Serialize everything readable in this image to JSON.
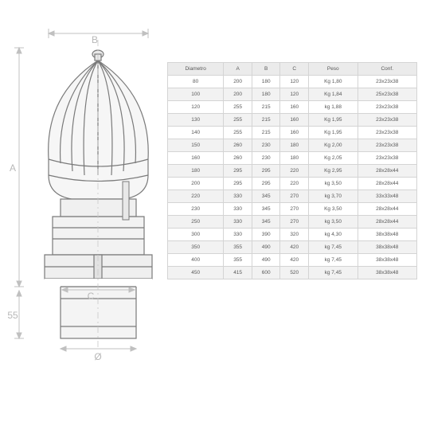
{
  "drawing": {
    "labels": {
      "A": "A",
      "B": "B",
      "C": "C",
      "diameter": "Ø",
      "height55": "55"
    },
    "stroke_color": "#b5b5b5",
    "dim_color": "#c0c0c0",
    "label_fontsize": 12
  },
  "table": {
    "type": "table",
    "header_bg": "#ebebeb",
    "row_odd_bg": "#ffffff",
    "row_even_bg": "#f2f2f2",
    "border_color": "#d4d4d4",
    "text_color": "#595959",
    "fontsize": 6.5,
    "columns": [
      "Diametro",
      "A",
      "B",
      "C",
      "Peso",
      "Conf."
    ],
    "rows": [
      [
        "80",
        "200",
        "180",
        "120",
        "Kg 1,80",
        "23x23x38"
      ],
      [
        "100",
        "200",
        "180",
        "120",
        "Kg 1,84",
        "25x23x38"
      ],
      [
        "120",
        "255",
        "215",
        "160",
        "kg 1,88",
        "23x23x38"
      ],
      [
        "130",
        "255",
        "215",
        "160",
        "Kg 1,95",
        "23x23x38"
      ],
      [
        "140",
        "255",
        "215",
        "160",
        "Kg 1,95",
        "23x23x38"
      ],
      [
        "150",
        "260",
        "230",
        "180",
        "Kg 2,00",
        "23x23x38"
      ],
      [
        "160",
        "260",
        "230",
        "180",
        "Kg 2,05",
        "23x23x38"
      ],
      [
        "180",
        "295",
        "295",
        "220",
        "Kg 2,95",
        "28x28x44"
      ],
      [
        "200",
        "295",
        "295",
        "220",
        "kg 3,50",
        "28x28x44"
      ],
      [
        "220",
        "330",
        "345",
        "270",
        "kg 3,70",
        "33x33x48"
      ],
      [
        "230",
        "330",
        "345",
        "270",
        "Kg 3,50",
        "28x28x44"
      ],
      [
        "250",
        "330",
        "345",
        "270",
        "kg 3,50",
        "28x28x44"
      ],
      [
        "300",
        "330",
        "390",
        "320",
        "kg 4,30",
        "38x38x48"
      ],
      [
        "350",
        "355",
        "490",
        "420",
        "kg 7,45",
        "38x38x48"
      ],
      [
        "400",
        "355",
        "490",
        "420",
        "kg 7,45",
        "38x38x48"
      ],
      [
        "450",
        "415",
        "600",
        "520",
        "kg 7,45",
        "38x38x48"
      ]
    ]
  }
}
